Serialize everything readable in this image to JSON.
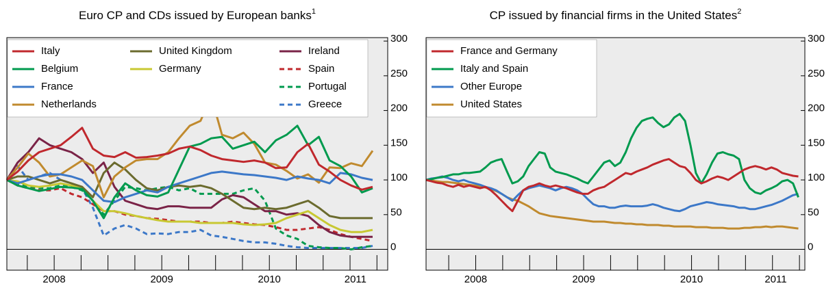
{
  "chart_data": [
    {
      "type": "line",
      "title": "Euro CP and CDs issued by European banks",
      "title_note": "1",
      "xlim": [
        2008.06,
        2011.6
      ],
      "ylim": [
        -30,
        305
      ],
      "xticks": [
        {
          "value": 2008.5,
          "label": "2008"
        },
        {
          "value": 2009.5,
          "label": "2009"
        },
        {
          "value": 2010.5,
          "label": "2010"
        },
        {
          "value": 2011.3,
          "label": "2011"
        }
      ],
      "xminor": [
        2008.25,
        2008.5,
        2008.75,
        2009,
        2009.25,
        2009.5,
        2009.75,
        2010,
        2010.25,
        2010.5,
        2010.75,
        2011,
        2011.25,
        2011.5
      ],
      "yticks": [
        0,
        50,
        100,
        150,
        200,
        250,
        300
      ],
      "baseline": 0,
      "x": [
        2008.06,
        2008.16,
        2008.26,
        2008.36,
        2008.46,
        2008.56,
        2008.66,
        2008.76,
        2008.86,
        2008.96,
        2009.06,
        2009.16,
        2009.26,
        2009.36,
        2009.46,
        2009.56,
        2009.66,
        2009.76,
        2009.86,
        2009.96,
        2010.06,
        2010.16,
        2010.26,
        2010.36,
        2010.46,
        2010.56,
        2010.66,
        2010.76,
        2010.86,
        2010.96,
        2011.06,
        2011.16,
        2011.26,
        2011.36,
        2011.46
      ],
      "series": [
        {
          "name": "Italy",
          "color": "#c0282d",
          "dash": false,
          "values": [
            100,
            112,
            128,
            140,
            145,
            150,
            162,
            175,
            145,
            135,
            133,
            140,
            132,
            133,
            135,
            138,
            145,
            148,
            143,
            135,
            130,
            128,
            126,
            128,
            125,
            117,
            118,
            140,
            152,
            122,
            112,
            100,
            92,
            86,
            90
          ]
        },
        {
          "name": "Belgium",
          "color": "#009a4e",
          "dash": false,
          "values": [
            100,
            92,
            88,
            84,
            87,
            90,
            89,
            87,
            70,
            45,
            75,
            95,
            85,
            78,
            76,
            82,
            115,
            148,
            152,
            160,
            162,
            145,
            150,
            155,
            140,
            157,
            165,
            178,
            150,
            162,
            128,
            120,
            105,
            82,
            88
          ]
        },
        {
          "name": "France",
          "color": "#3c78c8",
          "dash": false,
          "values": [
            100,
            95,
            100,
            105,
            108,
            108,
            105,
            100,
            85,
            70,
            68,
            75,
            80,
            85,
            82,
            90,
            95,
            100,
            105,
            110,
            112,
            110,
            108,
            107,
            105,
            103,
            100,
            105,
            102,
            100,
            95,
            110,
            108,
            103,
            100
          ]
        },
        {
          "name": "Netherlands",
          "color": "#c08a2e",
          "dash": false,
          "values": [
            100,
            118,
            138,
            125,
            105,
            108,
            118,
            128,
            120,
            75,
            105,
            118,
            128,
            130,
            130,
            140,
            160,
            178,
            185,
            220,
            165,
            160,
            168,
            152,
            125,
            122,
            113,
            102,
            108,
            96,
            118,
            117,
            124,
            120,
            142
          ]
        },
        {
          "name": "United Kingdom",
          "color": "#6b6b2e",
          "dash": false,
          "values": [
            100,
            105,
            105,
            100,
            95,
            100,
            95,
            90,
            75,
            110,
            125,
            115,
            100,
            88,
            85,
            90,
            92,
            90,
            92,
            88,
            80,
            70,
            60,
            58,
            60,
            58,
            60,
            65,
            70,
            60,
            48,
            45,
            45,
            45,
            45
          ]
        },
        {
          "name": "Germany",
          "color": "#c8c832",
          "dash": false,
          "values": [
            100,
            98,
            92,
            90,
            92,
            95,
            92,
            88,
            70,
            55,
            55,
            52,
            48,
            45,
            42,
            40,
            40,
            40,
            38,
            38,
            38,
            38,
            36,
            35,
            36,
            38,
            45,
            50,
            55,
            45,
            35,
            28,
            25,
            25,
            28
          ]
        },
        {
          "name": "Ireland",
          "color": "#7a2347",
          "dash": false,
          "values": [
            100,
            125,
            140,
            160,
            150,
            145,
            140,
            130,
            110,
            125,
            90,
            70,
            65,
            60,
            58,
            62,
            62,
            60,
            60,
            60,
            72,
            78,
            75,
            65,
            55,
            55,
            50,
            52,
            48,
            35,
            25,
            20,
            18,
            18,
            18
          ]
        },
        {
          "name": "Spain",
          "color": "#c0282d",
          "dash": true,
          "values": [
            100,
            92,
            88,
            85,
            85,
            88,
            80,
            75,
            65,
            55,
            55,
            50,
            48,
            45,
            44,
            42,
            40,
            40,
            40,
            38,
            38,
            40,
            38,
            36,
            35,
            32,
            28,
            28,
            30,
            32,
            28,
            22,
            18,
            15,
            12
          ]
        },
        {
          "name": "Portugal",
          "color": "#009a4e",
          "dash": true,
          "values": [
            100,
            95,
            90,
            88,
            88,
            92,
            90,
            85,
            70,
            50,
            70,
            90,
            88,
            85,
            88,
            90,
            85,
            88,
            80,
            80,
            80,
            80,
            85,
            88,
            70,
            30,
            20,
            15,
            5,
            3,
            2,
            2,
            0,
            3,
            5
          ]
        },
        {
          "name": "Greece",
          "color": "#3c78c8",
          "dash": true,
          "values": [
            100,
            120,
            100,
            105,
            110,
            100,
            95,
            88,
            60,
            20,
            30,
            35,
            30,
            22,
            23,
            22,
            25,
            25,
            28,
            20,
            18,
            15,
            12,
            10,
            10,
            8,
            5,
            3,
            2,
            2,
            2,
            2,
            2,
            2,
            5
          ]
        }
      ]
    },
    {
      "type": "line",
      "title": "CP issued by financial firms in the United States",
      "title_note": "2",
      "xlim": [
        2008.04,
        2011.55
      ],
      "ylim": [
        -30,
        305
      ],
      "xticks": [
        {
          "value": 2008.5,
          "label": "2008"
        },
        {
          "value": 2009.5,
          "label": "2009"
        },
        {
          "value": 2010.5,
          "label": "2010"
        },
        {
          "value": 2011.28,
          "label": "2011"
        }
      ],
      "xminor": [
        2008.25,
        2008.5,
        2008.75,
        2009,
        2009.25,
        2009.5,
        2009.75,
        2010,
        2010.25,
        2010.5,
        2010.75,
        2011,
        2011.25,
        2011.5
      ],
      "yticks": [
        0,
        50,
        100,
        150,
        200,
        250,
        300
      ],
      "baseline": 0,
      "x": [
        2008.04,
        2008.09,
        2008.14,
        2008.19,
        2008.24,
        2008.29,
        2008.34,
        2008.39,
        2008.44,
        2008.49,
        2008.54,
        2008.59,
        2008.64,
        2008.69,
        2008.74,
        2008.79,
        2008.84,
        2008.89,
        2008.94,
        2008.99,
        2009.04,
        2009.09,
        2009.14,
        2009.19,
        2009.24,
        2009.29,
        2009.34,
        2009.39,
        2009.44,
        2009.49,
        2009.54,
        2009.59,
        2009.64,
        2009.69,
        2009.74,
        2009.79,
        2009.84,
        2009.89,
        2009.94,
        2009.99,
        2010.04,
        2010.09,
        2010.14,
        2010.19,
        2010.24,
        2010.29,
        2010.34,
        2010.39,
        2010.44,
        2010.49,
        2010.54,
        2010.59,
        2010.64,
        2010.69,
        2010.74,
        2010.79,
        2010.84,
        2010.89,
        2010.94,
        2010.99,
        2011.04,
        2011.09,
        2011.14,
        2011.19,
        2011.24,
        2011.29,
        2011.34,
        2011.39,
        2011.44,
        2011.49
      ],
      "series": [
        {
          "name": "France and Germany",
          "color": "#c0282d",
          "dash": false,
          "values": [
            100,
            98,
            96,
            95,
            92,
            90,
            93,
            90,
            92,
            90,
            88,
            90,
            85,
            78,
            70,
            62,
            55,
            70,
            85,
            90,
            92,
            95,
            92,
            90,
            92,
            90,
            88,
            85,
            82,
            80,
            80,
            85,
            88,
            90,
            95,
            100,
            105,
            110,
            108,
            112,
            115,
            118,
            122,
            125,
            128,
            130,
            125,
            120,
            118,
            110,
            100,
            95,
            98,
            102,
            105,
            103,
            100,
            105,
            110,
            115,
            118,
            120,
            118,
            115,
            118,
            115,
            110,
            108,
            106,
            105
          ]
        },
        {
          "name": "Italy and Spain",
          "color": "#009a4e",
          "dash": false,
          "values": [
            100,
            101,
            103,
            104,
            106,
            108,
            108,
            110,
            110,
            111,
            112,
            118,
            125,
            128,
            130,
            112,
            95,
            98,
            105,
            120,
            130,
            140,
            138,
            118,
            112,
            110,
            108,
            105,
            102,
            98,
            95,
            105,
            115,
            125,
            128,
            120,
            125,
            140,
            160,
            175,
            185,
            188,
            190,
            182,
            176,
            180,
            190,
            195,
            185,
            150,
            110,
            95,
            108,
            125,
            138,
            140,
            137,
            135,
            130,
            100,
            88,
            82,
            80,
            85,
            88,
            92,
            98,
            100,
            95,
            75
          ]
        },
        {
          "name": "Other Europe",
          "color": "#3c78c8",
          "dash": false,
          "values": [
            100,
            102,
            103,
            105,
            103,
            100,
            98,
            100,
            97,
            95,
            93,
            90,
            88,
            85,
            80,
            75,
            70,
            78,
            85,
            88,
            90,
            92,
            90,
            88,
            85,
            88,
            90,
            88,
            85,
            80,
            72,
            65,
            62,
            62,
            60,
            60,
            62,
            63,
            62,
            62,
            62,
            63,
            65,
            63,
            60,
            58,
            56,
            55,
            58,
            62,
            64,
            66,
            68,
            67,
            65,
            64,
            63,
            62,
            60,
            60,
            58,
            58,
            60,
            62,
            64,
            67,
            70,
            74,
            78,
            80
          ]
        },
        {
          "name": "United States",
          "color": "#c08a2e",
          "dash": false,
          "values": [
            100,
            99,
            98,
            97,
            97,
            96,
            95,
            94,
            93,
            92,
            91,
            89,
            87,
            84,
            80,
            75,
            72,
            70,
            66,
            62,
            57,
            52,
            50,
            48,
            47,
            46,
            45,
            44,
            43,
            42,
            41,
            40,
            40,
            40,
            39,
            38,
            38,
            37,
            37,
            36,
            36,
            35,
            35,
            35,
            34,
            34,
            33,
            33,
            33,
            33,
            32,
            32,
            32,
            31,
            31,
            31,
            30,
            30,
            30,
            31,
            31,
            32,
            32,
            33,
            32,
            33,
            33,
            32,
            31,
            30
          ]
        }
      ]
    }
  ]
}
